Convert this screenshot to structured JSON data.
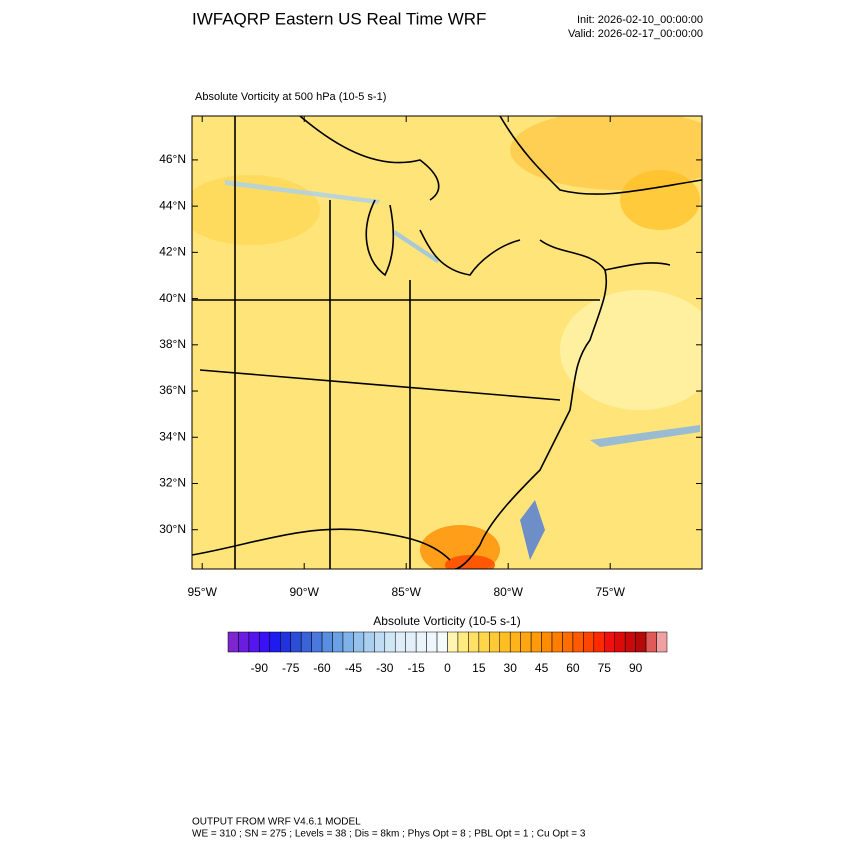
{
  "header": {
    "title": "IWFAQRP Eastern US Real Time WRF",
    "init": "Init: 2026-02-10_00:00:00",
    "valid": "Valid: 2026-02-17_00:00:00"
  },
  "map": {
    "title": "Absolute Vorticity at 500 hPa   (10-5 s-1)",
    "latlim": [
      28.3,
      47.9
    ],
    "lonlim": [
      -95.5,
      -70.5
    ],
    "lat_ticks": [
      {
        "value": 46,
        "label": "46°N"
      },
      {
        "value": 44,
        "label": "44°N"
      },
      {
        "value": 42,
        "label": "42°N"
      },
      {
        "value": 40,
        "label": "40°N"
      },
      {
        "value": 38,
        "label": "38°N"
      },
      {
        "value": 36,
        "label": "36°N"
      },
      {
        "value": 34,
        "label": "34°N"
      },
      {
        "value": 32,
        "label": "32°N"
      },
      {
        "value": 30,
        "label": "30°N"
      }
    ],
    "lon_ticks": [
      {
        "value": -95,
        "label": "95°W"
      },
      {
        "value": -90,
        "label": "90°W"
      },
      {
        "value": -85,
        "label": "85°W"
      },
      {
        "value": -80,
        "label": "80°W"
      },
      {
        "value": -75,
        "label": "75°W"
      }
    ]
  },
  "colorbar": {
    "title": "Absolute Vorticity  (10-5 s-1)",
    "range": [
      -105,
      105
    ],
    "ticks": [
      -90,
      -75,
      -60,
      -45,
      -30,
      -15,
      0,
      15,
      30,
      45,
      60,
      75,
      90
    ],
    "colors": [
      "#7d26cd",
      "#6a1de0",
      "#5615ee",
      "#3a10f5",
      "#1f1bf0",
      "#2233dd",
      "#2c4dd6",
      "#3a63d8",
      "#4a78dc",
      "#5a8ee0",
      "#6aa0e4",
      "#7fb2e8",
      "#94c2ec",
      "#a9d0f0",
      "#bfdcf4",
      "#cfe6f5",
      "#ddeef8",
      "#e3f0f9",
      "#eaf4fb",
      "#f0f7fc",
      "#f5fafd",
      "#fff5b0",
      "#ffeb80",
      "#ffe066",
      "#ffd54a",
      "#ffca33",
      "#ffbf22",
      "#ffb31a",
      "#ffa612",
      "#ff9a0a",
      "#ff8c00",
      "#ff7d00",
      "#ff6d00",
      "#ff5a00",
      "#ff4500",
      "#ff2a00",
      "#f01010",
      "#dd0a0a",
      "#c80a0a",
      "#b40a0a",
      "#e05a5a",
      "#f0a0a0"
    ]
  },
  "footer": {
    "line1": "OUTPUT FROM WRF V4.6.1 MODEL",
    "line2": "WE = 310 ; SN = 275 ; Levels = 38 ; Dis = 8km ; Phys Opt = 8 ; PBL Opt = 1 ; Cu Opt = 3"
  }
}
